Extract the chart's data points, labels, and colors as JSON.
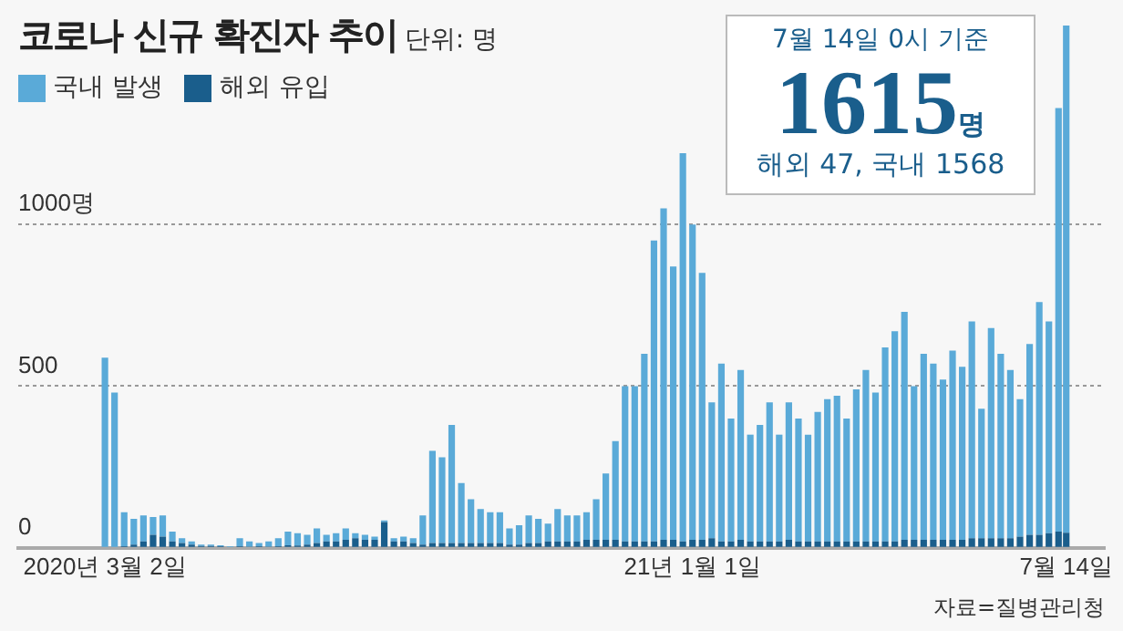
{
  "chart_data": {
    "type": "bar",
    "title": "코로나 신규 확진자 추이",
    "subtitle": "단위: 명",
    "stacked": true,
    "grid": "y",
    "legend": "top left",
    "x": [
      "2020-03-02",
      "2020-03-07",
      "2020-03-12",
      "2020-03-17",
      "2020-03-22",
      "2020-03-27",
      "2020-04-01",
      "2020-04-06",
      "2020-04-11",
      "2020-04-16",
      "2020-04-21",
      "2020-04-26",
      "2020-05-01",
      "2020-05-06",
      "2020-05-11",
      "2020-05-16",
      "2020-05-21",
      "2020-05-26",
      "2020-05-31",
      "2020-06-05",
      "2020-06-10",
      "2020-06-15",
      "2020-06-20",
      "2020-06-25",
      "2020-06-30",
      "2020-07-05",
      "2020-07-10",
      "2020-07-15",
      "2020-07-20",
      "2020-07-25",
      "2020-07-30",
      "2020-08-04",
      "2020-08-09",
      "2020-08-14",
      "2020-08-19",
      "2020-08-24",
      "2020-08-29",
      "2020-09-03",
      "2020-09-08",
      "2020-09-13",
      "2020-09-18",
      "2020-09-23",
      "2020-09-28",
      "2020-10-03",
      "2020-10-08",
      "2020-10-13",
      "2020-10-18",
      "2020-10-23",
      "2020-10-28",
      "2020-11-02",
      "2020-11-07",
      "2020-11-12",
      "2020-11-17",
      "2020-11-22",
      "2020-11-27",
      "2020-12-02",
      "2020-12-07",
      "2020-12-12",
      "2020-12-17",
      "2020-12-22",
      "2020-12-27",
      "2021-01-01",
      "2021-01-06",
      "2021-01-11",
      "2021-01-16",
      "2021-01-21",
      "2021-01-26",
      "2021-01-31",
      "2021-02-05",
      "2021-02-10",
      "2021-02-15",
      "2021-02-20",
      "2021-02-25",
      "2021-03-02",
      "2021-03-07",
      "2021-03-12",
      "2021-03-17",
      "2021-03-22",
      "2021-03-27",
      "2021-04-01",
      "2021-04-06",
      "2021-04-11",
      "2021-04-16",
      "2021-04-21",
      "2021-04-26",
      "2021-05-01",
      "2021-05-06",
      "2021-05-11",
      "2021-05-16",
      "2021-05-21",
      "2021-05-26",
      "2021-05-31",
      "2021-06-05",
      "2021-06-10",
      "2021-06-15",
      "2021-06-20",
      "2021-06-25",
      "2021-06-30",
      "2021-07-05",
      "2021-07-10",
      "2021-07-14"
    ],
    "series": [
      {
        "name": "해외 유입",
        "color": "#1a5e8c",
        "values": [
          null,
          3,
          5,
          10,
          20,
          40,
          35,
          20,
          15,
          10,
          6,
          6,
          5,
          3,
          5,
          4,
          5,
          4,
          5,
          8,
          7,
          10,
          15,
          20,
          20,
          25,
          30,
          25,
          25,
          80,
          20,
          20,
          15,
          10,
          15,
          15,
          15,
          15,
          15,
          15,
          15,
          15,
          10,
          10,
          15,
          15,
          20,
          20,
          20,
          20,
          25,
          25,
          25,
          25,
          20,
          20,
          20,
          20,
          25,
          25,
          20,
          25,
          25,
          30,
          20,
          20,
          25,
          20,
          20,
          20,
          20,
          25,
          20,
          20,
          20,
          20,
          20,
          20,
          20,
          20,
          20,
          20,
          20,
          25,
          25,
          25,
          25,
          25,
          25,
          25,
          30,
          30,
          30,
          30,
          30,
          35,
          40,
          40,
          45,
          50,
          47
        ]
      },
      {
        "name": "국내 발생",
        "color": "#5aaad8",
        "values": [
          588,
          477,
          105,
          80,
          80,
          55,
          65,
          30,
          15,
          10,
          4,
          4,
          3,
          2,
          25,
          16,
          10,
          16,
          25,
          42,
          38,
          30,
          45,
          20,
          25,
          35,
          15,
          15,
          10,
          5,
          10,
          15,
          15,
          90,
          285,
          265,
          365,
          185,
          135,
          105,
          95,
          95,
          50,
          60,
          85,
          75,
          55,
          100,
          80,
          80,
          85,
          125,
          205,
          305,
          480,
          480,
          580,
          930,
          1025,
          845,
          1200,
          975,
          825,
          420,
          550,
          380,
          525,
          330,
          360,
          430,
          330,
          425,
          380,
          330,
          400,
          440,
          450,
          380,
          470,
          530,
          460,
          600,
          650,
          705,
          475,
          575,
          545,
          495,
          585,
          535,
          670,
          400,
          650,
          570,
          520,
          425,
          590,
          720,
          655,
          1310,
          1568
        ]
      }
    ],
    "xlim": [
      "2020-01-17",
      "2021-08-03"
    ],
    "xticks": [
      {
        "value": "2020-03-02",
        "label": "2020년 3월 2일"
      },
      {
        "value": "2021-01-01",
        "label": "21년 1월 1일"
      },
      {
        "value": "2021-07-14",
        "label": "7월 14일"
      }
    ],
    "ylim": [
      0,
      1650
    ],
    "yticks": [
      0,
      500,
      {
        "value": 1000,
        "label": "1000명"
      }
    ],
    "annotations": [
      "7월 14일 0시 기준",
      "1615명",
      "해외 47, 국내 1568",
      "자료=질병관리청"
    ]
  }
}
